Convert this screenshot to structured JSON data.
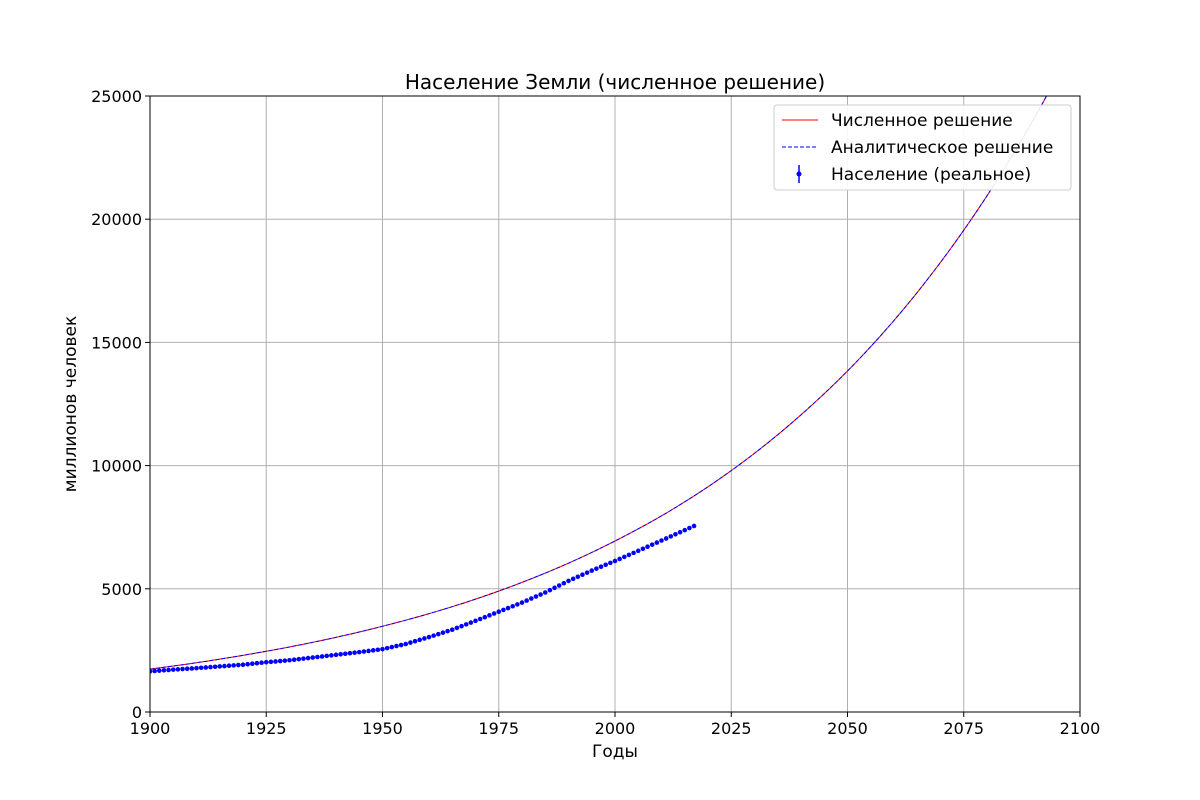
{
  "chart_data": {
    "type": "line",
    "title": "Население Земли (численное решение)",
    "xlabel": "Годы",
    "ylabel": "миллионов человек",
    "xlim": [
      1900,
      2100
    ],
    "ylim": [
      0,
      25000
    ],
    "x_ticks": [
      1900,
      1925,
      1950,
      1975,
      2000,
      2025,
      2050,
      2075,
      2100
    ],
    "y_ticks": [
      0,
      5000,
      10000,
      15000,
      20000,
      25000
    ],
    "grid": true,
    "legend_position": "top-right",
    "series": [
      {
        "name": "Численное решение",
        "kind": "line",
        "style": "solid",
        "color": "#ff0000",
        "x": [
          1900,
          1910,
          1920,
          1930,
          1940,
          1950,
          1960,
          1970,
          1980,
          1990,
          2000,
          2010,
          2020,
          2030,
          2040,
          2050,
          2060,
          2070,
          2080,
          2090,
          2100
        ],
        "y": [
          1740,
          2000,
          2300,
          2640,
          3030,
          3480,
          3990,
          4580,
          5260,
          6040,
          6940,
          7960,
          9140,
          10500,
          12060,
          13840,
          15890,
          18250,
          20950,
          24050,
          27610
        ]
      },
      {
        "name": "Аналитическое решение",
        "kind": "line",
        "style": "dashed",
        "color": "#0000ff",
        "x": [
          1900,
          1910,
          1920,
          1930,
          1940,
          1950,
          1960,
          1970,
          1980,
          1990,
          2000,
          2010,
          2020,
          2030,
          2040,
          2050,
          2060,
          2070,
          2080,
          2090,
          2100
        ],
        "y": [
          1740,
          2000,
          2300,
          2640,
          3030,
          3480,
          3990,
          4580,
          5260,
          6040,
          6940,
          7960,
          9140,
          10500,
          12060,
          13840,
          15890,
          18250,
          20950,
          24050,
          27610
        ]
      },
      {
        "name": "Население (реальное)",
        "kind": "points",
        "color": "#0000ff",
        "x": [
          1900,
          1905,
          1910,
          1915,
          1920,
          1925,
          1930,
          1935,
          1940,
          1945,
          1950,
          1955,
          1960,
          1965,
          1970,
          1975,
          1980,
          1985,
          1990,
          1995,
          2000,
          2005,
          2010,
          2015,
          2017
        ],
        "y": [
          1650,
          1720,
          1780,
          1850,
          1920,
          2020,
          2100,
          2210,
          2320,
          2430,
          2550,
          2760,
          3040,
          3340,
          3700,
          4070,
          4440,
          4850,
          5320,
          5740,
          6130,
          6540,
          6960,
          7380,
          7550
        ]
      }
    ]
  }
}
